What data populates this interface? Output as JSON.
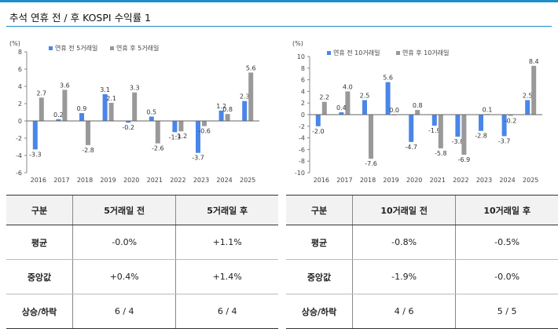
{
  "title": "추석 연휴 전 / 후 KOSPI 수익률 1",
  "colors": {
    "before": "#4a86e8",
    "after": "#999999",
    "accent": "#1a8fc9"
  },
  "chart_data": [
    {
      "type": "bar",
      "ylabel": "(%)",
      "ylim": [
        -6,
        8
      ],
      "yticks": [
        -6,
        -4,
        -2,
        0,
        2,
        4,
        6,
        8
      ],
      "grid": false,
      "legend_placement": "top-center",
      "categories": [
        "2016",
        "2017",
        "2018",
        "2019",
        "2020",
        "2021",
        "2022",
        "2023",
        "2024",
        "2025"
      ],
      "series": [
        {
          "name": "연휴 전 5거래일",
          "values": [
            -3.3,
            0.2,
            0.9,
            3.1,
            -0.2,
            0.5,
            -1.3,
            -3.7,
            1.2,
            2.3
          ]
        },
        {
          "name": "연휴 후 5거래일",
          "values": [
            2.7,
            3.6,
            -2.8,
            2.1,
            3.3,
            -2.6,
            -1.2,
            -0.6,
            0.8,
            5.6
          ]
        }
      ]
    },
    {
      "type": "bar",
      "ylabel": "(%)",
      "ylim": [
        -10,
        10
      ],
      "yticks": [
        -10,
        -8,
        -6,
        -4,
        -2,
        0,
        2,
        4,
        6,
        8,
        10
      ],
      "grid": false,
      "legend_placement": "top-center",
      "categories": [
        "2016",
        "2017",
        "2018",
        "2019",
        "2020",
        "2021",
        "2022",
        "2023",
        "2024",
        "2025"
      ],
      "series": [
        {
          "name": "연휴 전 10거래일",
          "values": [
            -2.0,
            0.4,
            2.5,
            5.6,
            -4.7,
            -1.9,
            -3.8,
            -2.8,
            -3.7,
            2.5
          ]
        },
        {
          "name": "연휴 후 10거래일",
          "values": [
            2.2,
            4.0,
            -7.6,
            0.0,
            0.8,
            -5.8,
            -6.9,
            0.1,
            -0.2,
            8.4
          ]
        }
      ]
    }
  ],
  "tables": [
    {
      "headers": [
        "구분",
        "5거래일 전",
        "5거래일 후"
      ],
      "rows": [
        [
          "평균",
          "-0.0%",
          "+1.1%"
        ],
        [
          "중앙값",
          "+0.4%",
          "+1.4%"
        ],
        [
          "상승/하락",
          "6 / 4",
          "6 / 4"
        ]
      ]
    },
    {
      "headers": [
        "구분",
        "10거래일 전",
        "10거래일 후"
      ],
      "rows": [
        [
          "평균",
          "-0.8%",
          "-0.5%"
        ],
        [
          "중앙값",
          "-1.9%",
          "-0.0%"
        ],
        [
          "상승/하락",
          "4 / 6",
          "5 / 5"
        ]
      ]
    }
  ]
}
